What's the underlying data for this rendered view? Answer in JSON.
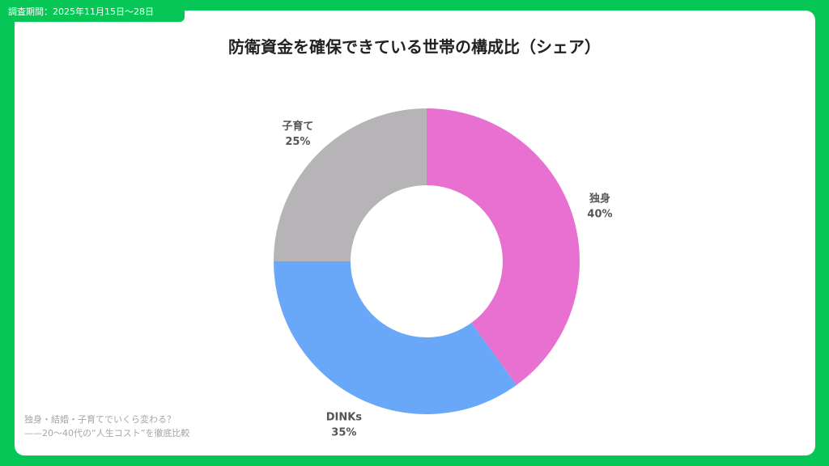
{
  "period_label": "調査期間：2025年11月15日〜28日",
  "title": "防衛資金を確保できている世帯の構成比（シェア）",
  "footnote": {
    "line1": "独身・結婚・子育てでいくら変わる？",
    "line2": "——20〜40代の“人生コスト”を徹底比較"
  },
  "colors": {
    "frame": "#06c755",
    "card": "#ffffff"
  },
  "chart_data": {
    "type": "pie",
    "style": "donut",
    "unit": "%",
    "slices": [
      {
        "label": "独身",
        "value": 40,
        "value_label": "40%",
        "color": "#e870d0"
      },
      {
        "label": "DINKs",
        "value": 35,
        "value_label": "35%",
        "color": "#69a8f8"
      },
      {
        "label": "子育て",
        "value": 25,
        "value_label": "25%",
        "color": "#b6b4b6"
      }
    ],
    "start": "12 o'clock",
    "direction": "clockwise"
  }
}
